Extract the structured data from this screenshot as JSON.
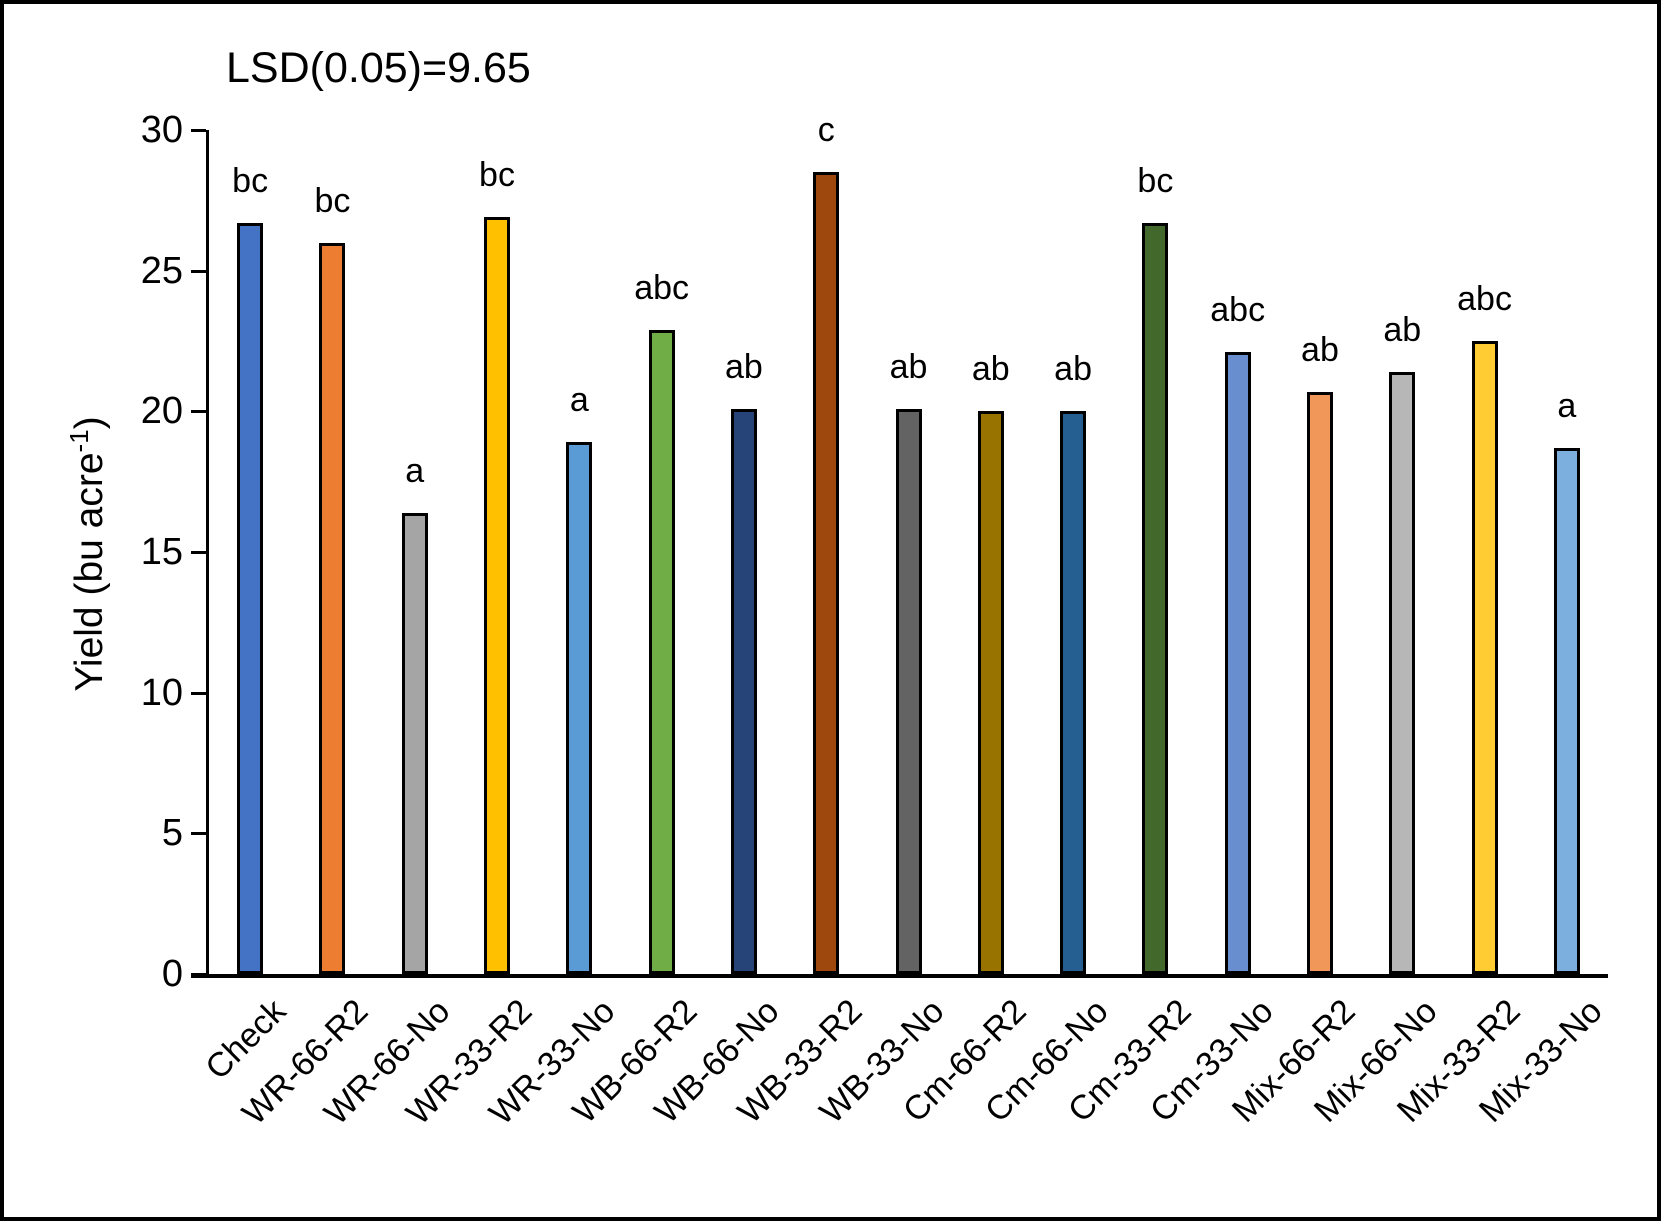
{
  "chart_data": {
    "type": "bar",
    "annotation": "LSD(0.05)=9.65",
    "ylabel_main": "Yield (bu acre",
    "ylabel_sup": "-1",
    "ylabel_close": ")",
    "xlabel": "",
    "ylim": [
      0,
      30
    ],
    "yticks": [
      0,
      5,
      10,
      15,
      20,
      25,
      30
    ],
    "grid": "off",
    "legend": "none",
    "categories": [
      "Check",
      "WR-66-R2",
      "WR-66-No",
      "WR-33-R2",
      "WR-33-No",
      "WB-66-R2",
      "WB-66-No",
      "WB-33-R2",
      "WB-33-No",
      "Cm-66-R2",
      "Cm-66-No",
      "Cm-33-R2",
      "Cm-33-No",
      "Mix-66-R2",
      "Mix-66-No",
      "Mix-33-R2",
      "Mix-33-No"
    ],
    "values": [
      26.7,
      26.0,
      16.4,
      26.9,
      18.9,
      22.9,
      20.1,
      28.5,
      20.1,
      20.0,
      20.0,
      26.7,
      22.1,
      20.7,
      21.4,
      22.5,
      18.7
    ],
    "sig_letters": [
      "bc",
      "bc",
      "a",
      "bc",
      "a",
      "abc",
      "ab",
      "c",
      "ab",
      "ab",
      "ab",
      "bc",
      "abc",
      "ab",
      "ab",
      "abc",
      "a"
    ],
    "bar_colors": [
      "#4472C4",
      "#ED7D31",
      "#A5A5A5",
      "#FFC000",
      "#5B9BD5",
      "#70AD47",
      "#264478",
      "#9E480E",
      "#636363",
      "#997300",
      "#255E91",
      "#43682B",
      "#698ED0",
      "#F1975A",
      "#B7B7B7",
      "#FFCD33",
      "#7CAFDD"
    ],
    "bar_border_color": "#000000",
    "axis_color": "#000000"
  }
}
